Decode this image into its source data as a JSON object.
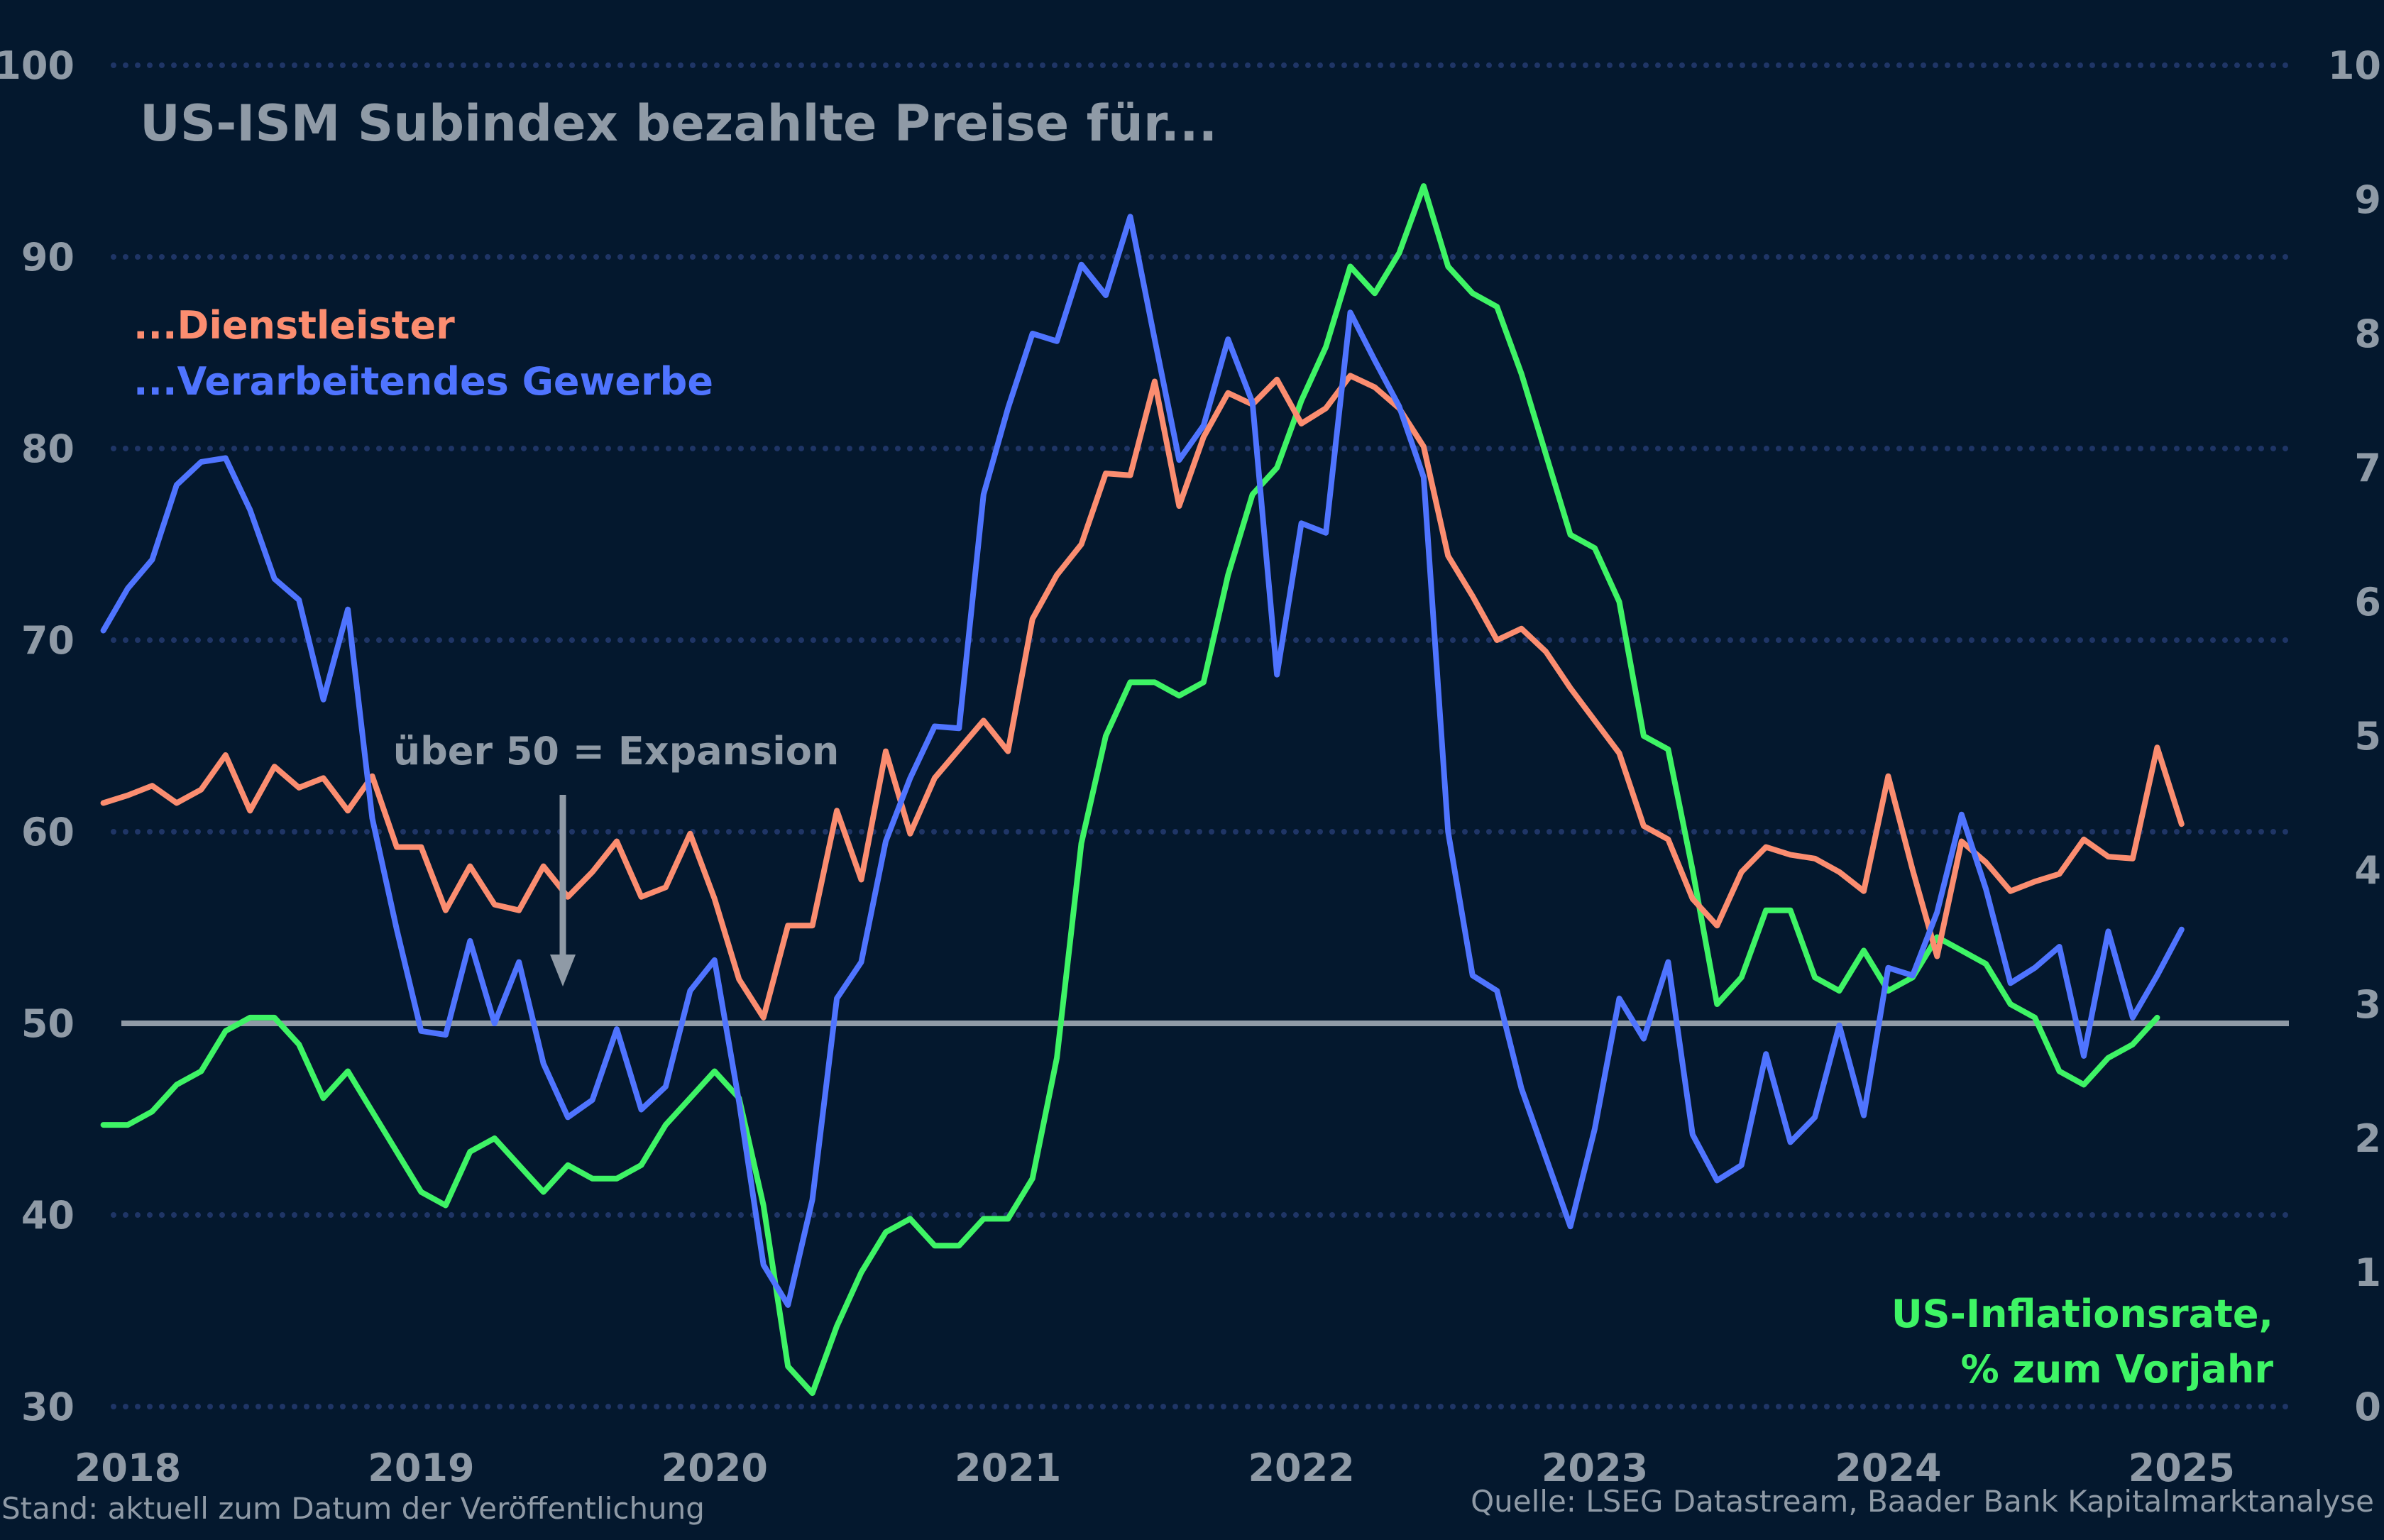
{
  "colors": {
    "background": "#04182e",
    "services": "#fb8d70",
    "manufacturing": "#4f74ff",
    "inflation": "#3ef465",
    "text": "#8f9aa6",
    "grid": "#1f3566",
    "reference_line": "#8f9aa6"
  },
  "chart_data": {
    "type": "line",
    "title": "US-ISM Subindex bezahlte Preise für...",
    "x_tick_labels": [
      "2018",
      "2019",
      "2020",
      "2021",
      "2022",
      "2023",
      "2024",
      "2025"
    ],
    "y_left": {
      "range": [
        30,
        100
      ],
      "ticks": [
        "100",
        "90",
        "80",
        "70",
        "60",
        "50",
        "40",
        "30"
      ]
    },
    "y_right": {
      "range": [
        0,
        10
      ],
      "ticks": [
        "10",
        "9",
        "8",
        "7",
        "6",
        "5",
        "4",
        "3",
        "2",
        "1",
        "0"
      ]
    },
    "grid": "horizontal dotted",
    "reference_line": 50,
    "annotation": "über 50 = Expansion",
    "x_start": "2017-12",
    "frequency": "monthly",
    "series": [
      {
        "name": "...Dienstleister",
        "axis": "left",
        "color_key": "services",
        "values": [
          61.5,
          61.9,
          62.4,
          61.5,
          62.2,
          64.0,
          61.1,
          63.4,
          62.3,
          62.8,
          61.1,
          62.9,
          59.2,
          59.2,
          55.9,
          58.2,
          56.2,
          55.9,
          58.2,
          56.6,
          57.9,
          59.5,
          56.6,
          57.1,
          59.9,
          56.5,
          52.3,
          50.3,
          55.1,
          55.1,
          61.1,
          57.5,
          64.2,
          59.9,
          62.8,
          64.3,
          65.8,
          64.2,
          71.1,
          73.4,
          75.0,
          78.7,
          78.6,
          83.5,
          77.0,
          80.6,
          82.9,
          82.3,
          83.6,
          81.3,
          82.1,
          83.8,
          83.2,
          82.1,
          80.1,
          74.4,
          72.3,
          70.0,
          70.6,
          69.4,
          67.5,
          65.8,
          64.1,
          60.3,
          59.6,
          56.5,
          55.1,
          57.9,
          59.2,
          58.8,
          58.6,
          57.9,
          56.9,
          62.9,
          58.0,
          53.5,
          59.5,
          58.4,
          56.9,
          57.4,
          57.8,
          59.6,
          58.7,
          58.6,
          64.4,
          60.4
        ]
      },
      {
        "name": "...Verarbeitendes Gewerbe",
        "axis": "left",
        "color_key": "manufacturing",
        "values": [
          70.5,
          72.7,
          74.2,
          78.1,
          79.3,
          79.5,
          76.8,
          73.2,
          72.1,
          66.9,
          71.6,
          60.7,
          54.9,
          49.6,
          49.4,
          54.3,
          50.0,
          53.2,
          47.9,
          45.1,
          46.0,
          49.7,
          45.5,
          46.7,
          51.7,
          53.3,
          45.9,
          37.4,
          35.3,
          40.8,
          51.3,
          53.2,
          59.5,
          62.8,
          65.5,
          65.4,
          77.6,
          82.1,
          86.0,
          85.6,
          89.6,
          88.0,
          92.1,
          85.7,
          79.4,
          81.2,
          85.7,
          82.4,
          68.2,
          76.1,
          75.6,
          87.1,
          84.6,
          82.2,
          78.5,
          60.0,
          52.5,
          51.7,
          46.6,
          43.0,
          39.4,
          44.5,
          51.3,
          49.2,
          53.2,
          44.2,
          41.8,
          42.6,
          48.4,
          43.8,
          45.1,
          49.9,
          45.2,
          52.9,
          52.5,
          55.8,
          60.9,
          57.0,
          52.1,
          52.9,
          54.0,
          48.3,
          54.8,
          50.3,
          52.5,
          54.9
        ]
      },
      {
        "name": "US-Inflationsrate, % zum Vorjahr",
        "axis": "right",
        "color_key": "inflation",
        "values": [
          2.1,
          2.1,
          2.2,
          2.4,
          2.5,
          2.8,
          2.9,
          2.9,
          2.7,
          2.3,
          2.5,
          2.2,
          1.9,
          1.6,
          1.5,
          1.9,
          2.0,
          1.8,
          1.6,
          1.8,
          1.7,
          1.7,
          1.8,
          2.1,
          2.3,
          2.5,
          2.3,
          1.5,
          0.3,
          0.1,
          0.6,
          1.0,
          1.3,
          1.4,
          1.2,
          1.2,
          1.4,
          1.4,
          1.7,
          2.6,
          4.2,
          5.0,
          5.4,
          5.4,
          5.3,
          5.4,
          6.2,
          6.8,
          7.0,
          7.5,
          7.9,
          8.5,
          8.3,
          8.6,
          9.1,
          8.5,
          8.3,
          8.2,
          7.7,
          7.1,
          6.5,
          6.4,
          6.0,
          5.0,
          4.9,
          4.0,
          3.0,
          3.2,
          3.7,
          3.7,
          3.2,
          3.1,
          3.4,
          3.1,
          3.2,
          3.5,
          3.4,
          3.3,
          3.0,
          2.9,
          2.5,
          2.4,
          2.6,
          2.7,
          2.9
        ]
      }
    ]
  },
  "legend": {
    "services": "...Dienstleister",
    "manufacturing": "...Verarbeitendes Gewerbe",
    "inflation_line1": "US-Inflationsrate,",
    "inflation_line2": "% zum Vorjahr"
  },
  "footer": {
    "left": "Stand: aktuell zum Datum der Veröffentlichung",
    "right": "Quelle: LSEG Datastream, Baader Bank Kapitalmarktanalyse"
  }
}
